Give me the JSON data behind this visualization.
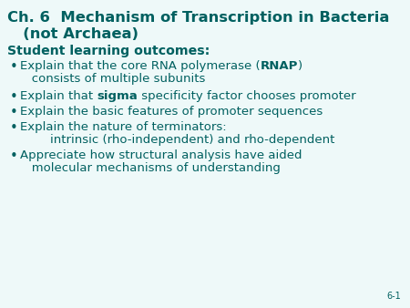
{
  "background_color": "#eef9f9",
  "title_color": "#006060",
  "text_color": "#006060",
  "title_fontsize": 11.8,
  "subtitle_fontsize": 10.2,
  "body_fontsize": 9.5,
  "page_num_fontsize": 7.0,
  "page_number": "6-1",
  "title_line1": "Ch. 6  Mechanism of Transcription in Bacteria",
  "title_line2": "   (not Archaea)",
  "subtitle": "Student learning outcomes",
  "lines": [
    {
      "type": "bullet",
      "parts": [
        {
          "text": "Explain that the core RNA polymerase (",
          "bold": false
        },
        {
          "text": "RNAP",
          "bold": true
        },
        {
          "text": ")",
          "bold": false
        }
      ],
      "line2": "   consists of multiple subunits"
    },
    {
      "type": "bullet",
      "parts": [
        {
          "text": "Explain that ",
          "bold": false
        },
        {
          "text": "sigma",
          "bold": true
        },
        {
          "text": " specificity factor chooses promoter",
          "bold": false
        }
      ],
      "line2": null
    },
    {
      "type": "bullet",
      "parts": [
        {
          "text": "Explain the basic features of promoter sequences",
          "bold": false
        }
      ],
      "line2": null
    },
    {
      "type": "bullet",
      "parts": [
        {
          "text": "Explain the nature of terminators:",
          "bold": false
        }
      ],
      "line2": null
    },
    {
      "type": "indent",
      "parts": [
        {
          "text": "intrinsic (rho-independent) and rho-dependent",
          "bold": false
        }
      ],
      "line2": null
    },
    {
      "type": "bullet",
      "parts": [
        {
          "text": "Appreciate how structural analysis have aided",
          "bold": false
        }
      ],
      "line2": "   molecular mechanisms of understanding"
    }
  ]
}
